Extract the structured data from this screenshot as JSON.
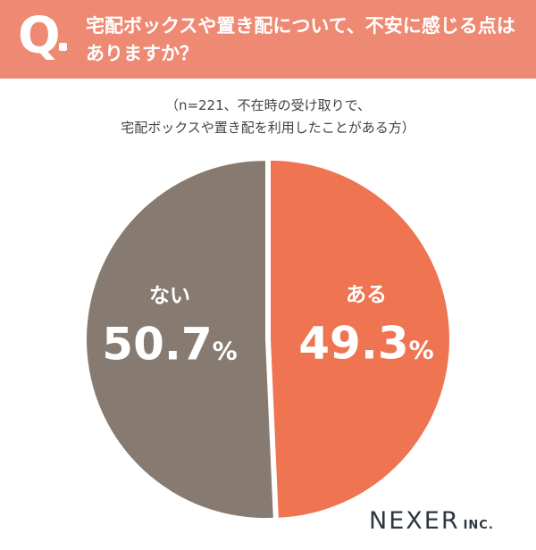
{
  "header": {
    "q_mark": "Q",
    "question_line1": "宅配ボックスや置き配について、不安に感じる点は",
    "question_line2": "ありますか？"
  },
  "note": {
    "line1": "（n=221、不在時の受け取りで、",
    "line2": "宅配ボックスや置き配を利用したことがある方）"
  },
  "chart_data": {
    "type": "pie",
    "n": 221,
    "slices": [
      {
        "label": "ある",
        "value": 49.3,
        "display": "49.3",
        "color": "#ee7452"
      },
      {
        "label": "ない",
        "value": 50.7,
        "display": "50.7",
        "color": "#877b71"
      }
    ],
    "unit": "%"
  },
  "brand": {
    "name": "NEXER",
    "suffix": "INC."
  }
}
